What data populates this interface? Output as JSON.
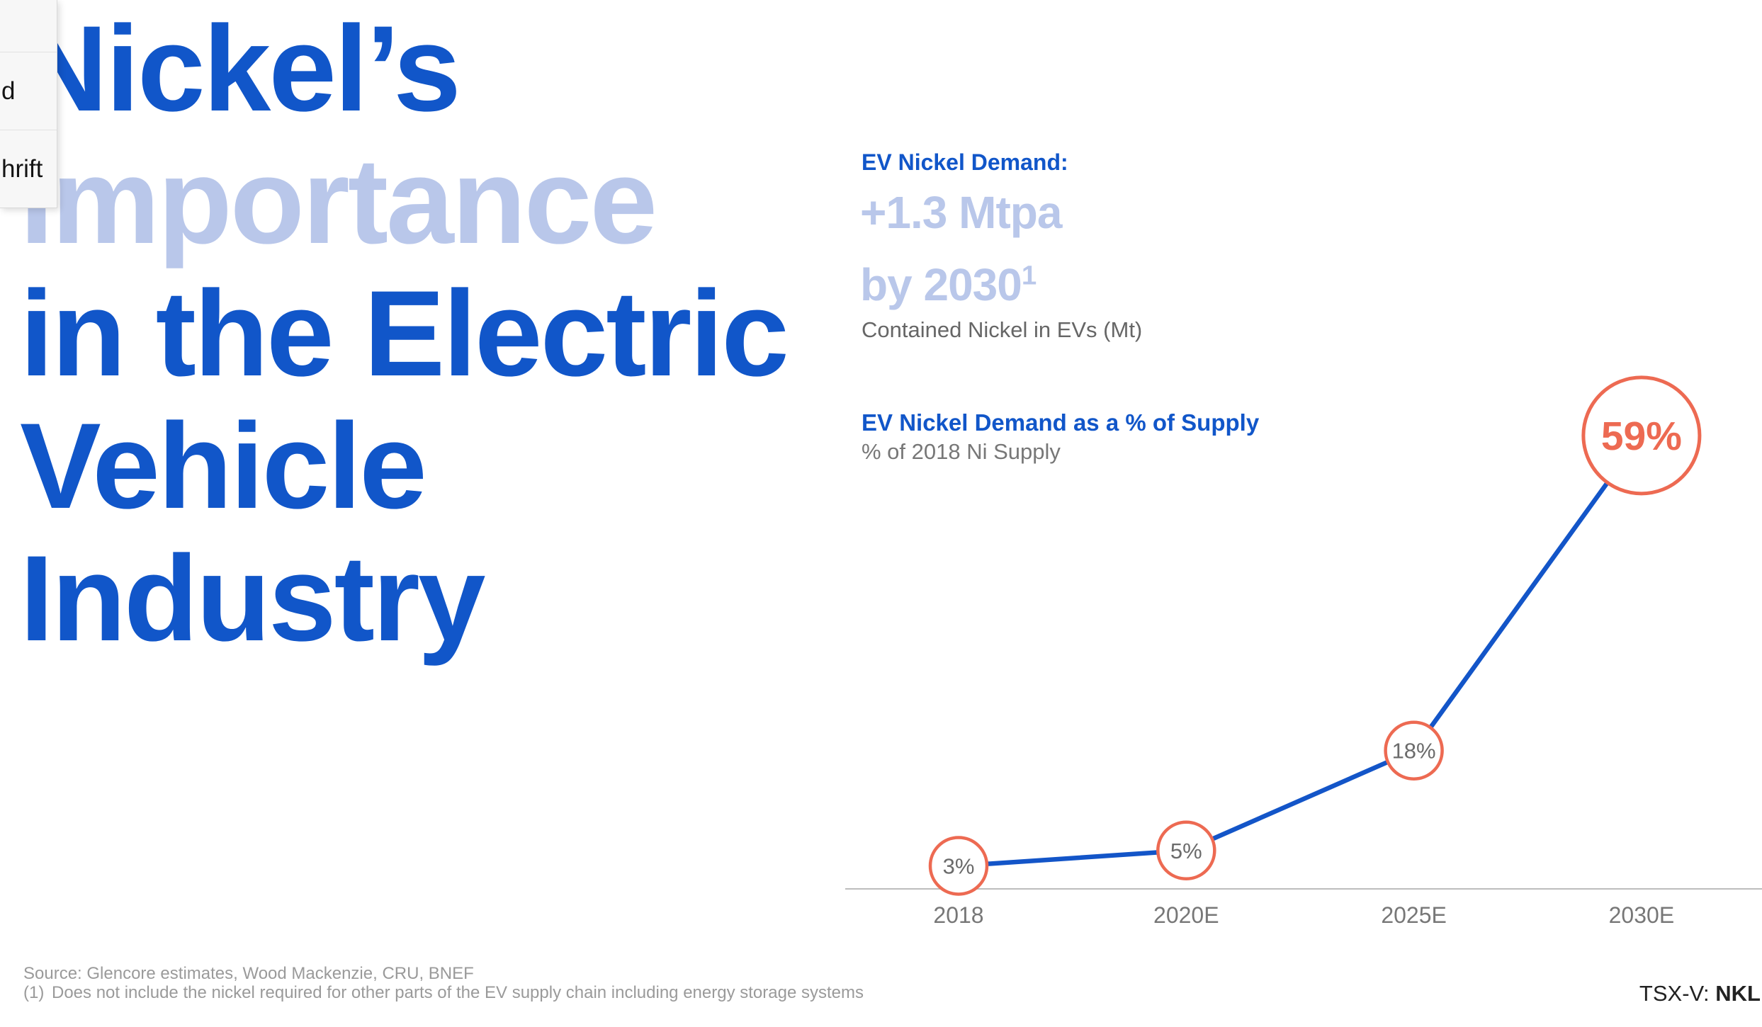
{
  "context_menu": {
    "items": [
      {
        "label": ""
      },
      {
        "label": "d"
      },
      {
        "label": "hrift"
      }
    ]
  },
  "title": {
    "lines": [
      {
        "text": "Nickel’s",
        "tone": "strong"
      },
      {
        "text": "Importance",
        "tone": "faded"
      },
      {
        "text": "in the Electric",
        "tone": "strong"
      },
      {
        "text": "Vehicle",
        "tone": "strong"
      },
      {
        "text": "Industry",
        "tone": "strong"
      }
    ]
  },
  "demand_callout": {
    "heading": "EV Nickel Demand:",
    "big_line1": "+1.3 Mtpa",
    "big_line2": "by 2030",
    "footnote_marker": "1",
    "subtitle": "Contained Nickel in EVs (Mt)"
  },
  "chart_heading": {
    "title": "EV Nickel Demand as a % of Supply",
    "subtitle": "% of 2018 Ni Supply"
  },
  "chart_data": {
    "type": "line",
    "title": "EV Nickel Demand as a % of Supply",
    "subtitle": "% of 2018 Ni Supply",
    "categories": [
      "2018",
      "2020E",
      "2025E",
      "2030E"
    ],
    "values": [
      3,
      5,
      18,
      59
    ],
    "point_labels": [
      "3%",
      "5%",
      "18%",
      "59%"
    ],
    "emphasized_index": 3,
    "xlabel": "",
    "ylabel": "",
    "ylim": [
      0,
      62
    ],
    "grid": false,
    "legend": false,
    "colors": {
      "line": "#1355c8",
      "marker_stroke": "#ed6a52",
      "marker_fill": "#ffffff",
      "label_small": "#6b6b6b",
      "label_emphasized": "#ed6a52",
      "axis": "#bdbdbd",
      "tick": "#777777"
    }
  },
  "footer": {
    "source": "Source: Glencore estimates, Wood Mackenzie, CRU, BNEF",
    "note_marker": "(1)",
    "note_text": "Does not include the nickel required for other parts of the EV supply chain including energy storage systems",
    "ticker_prefix": "TSX-V: ",
    "ticker_symbol": "NKL"
  },
  "colors": {
    "accent_blue": "#1156c9",
    "light_blue": "#b9c7ea",
    "accent_orange": "#ed6a52",
    "menu_background": "#f7f7f7"
  }
}
